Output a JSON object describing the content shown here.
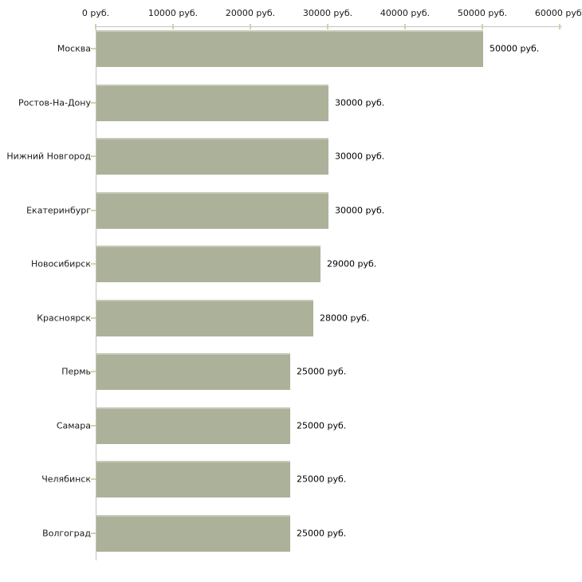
{
  "chart_data": {
    "type": "bar",
    "orientation": "horizontal",
    "title": "",
    "categories": [
      "Москва",
      "Ростов-На-Дону",
      "Нижний Новгород",
      "Екатеринбург",
      "Новосибирск",
      "Красноярск",
      "Пермь",
      "Самара",
      "Челябинск",
      "Волгоград"
    ],
    "values": [
      50000,
      30000,
      30000,
      30000,
      29000,
      28000,
      25000,
      25000,
      25000,
      25000
    ],
    "value_labels": [
      "50000 руб.",
      "30000 руб.",
      "30000 руб.",
      "30000 руб.",
      "29000 руб.",
      "28000 руб.",
      "25000 руб.",
      "25000 руб.",
      "25000 руб.",
      "25000 руб."
    ],
    "xlabel": "",
    "ylabel": "",
    "xlim": [
      0,
      60000
    ],
    "x_ticks": [
      0,
      10000,
      20000,
      30000,
      40000,
      50000,
      60000
    ],
    "x_tick_labels": [
      "0 руб.",
      "10000 руб.",
      "20000 руб.",
      "30000 руб.",
      "40000 руб.",
      "50000 руб.",
      "60000 руб."
    ],
    "unit": "руб.",
    "grid": false,
    "legend": null,
    "colors": {
      "bar_fill": "#acb199",
      "bar_top_edge": "#c6c9b8",
      "axis_line": "#c3c3c3",
      "tick_mark": "#d2d2ab",
      "text": "#1a1a1a",
      "background": "#ffffff"
    }
  }
}
